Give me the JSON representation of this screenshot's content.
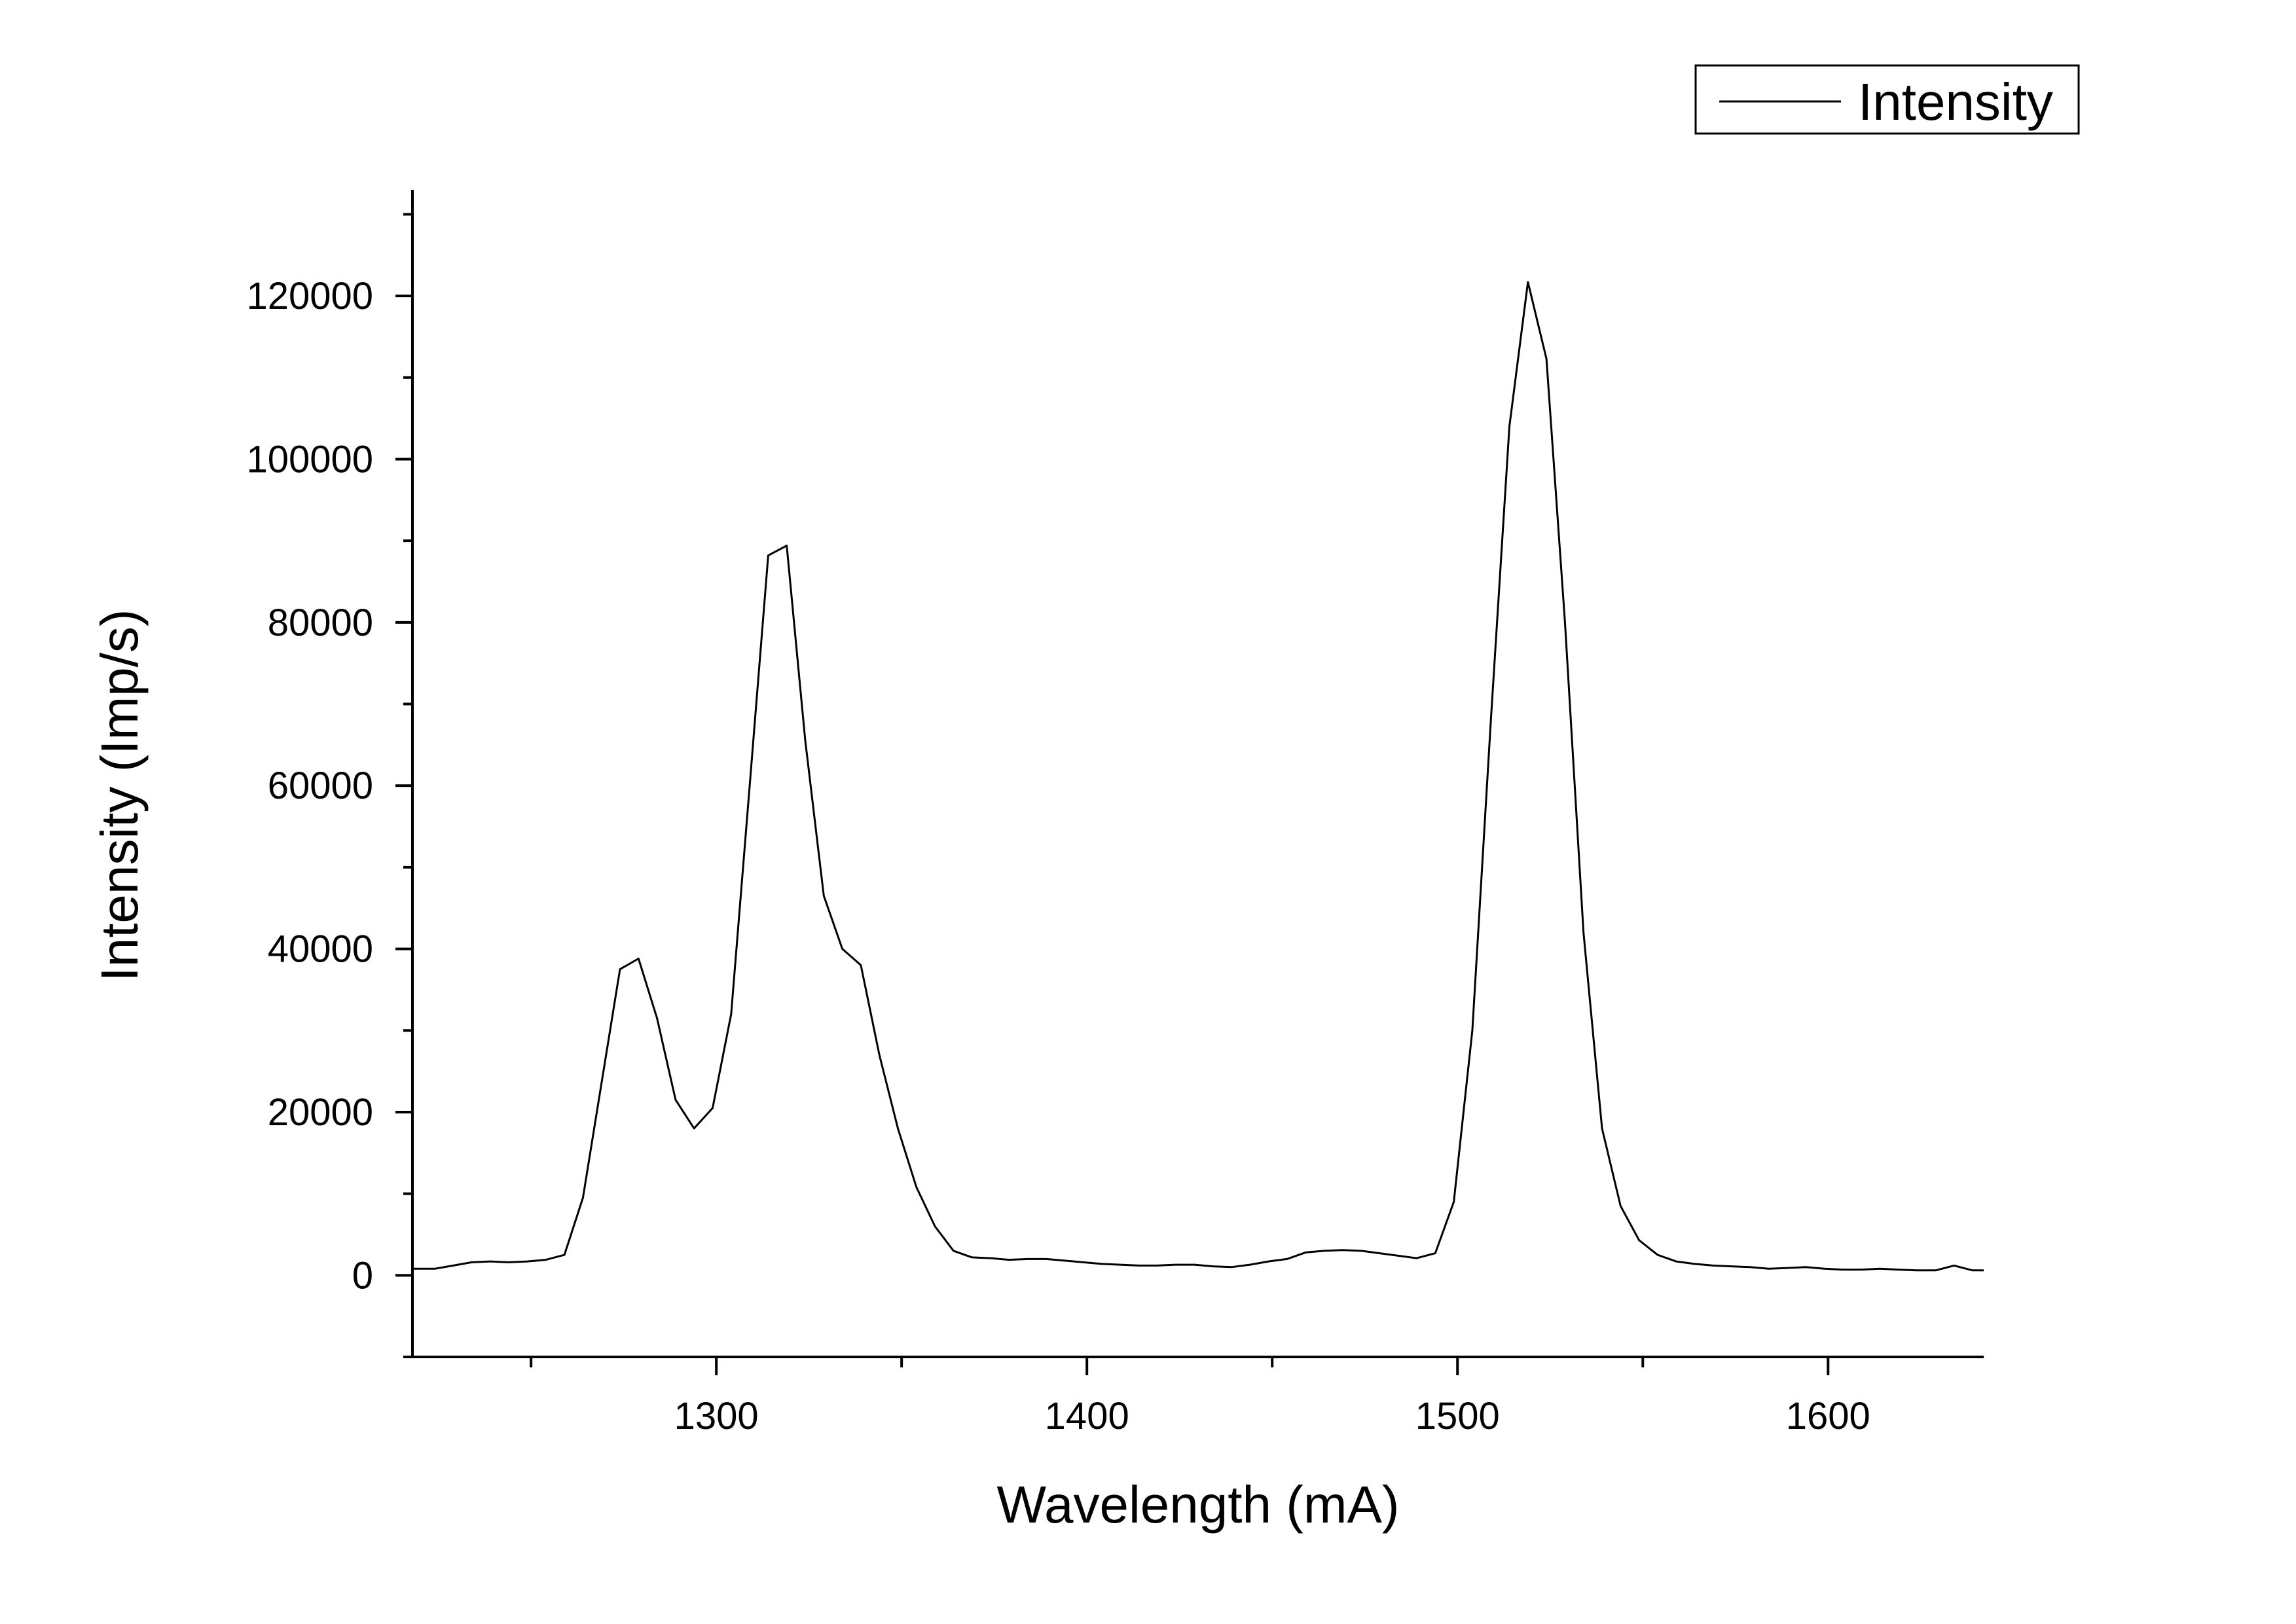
{
  "chart_data": {
    "type": "line",
    "title": "",
    "xlabel": "Wavelength (mA)",
    "ylabel": "Intensity (Imp/s)",
    "xlim": [
      1218,
      1642
    ],
    "ylim": [
      -10000,
      133000
    ],
    "x_ticks": [
      1300,
      1400,
      1500,
      1600
    ],
    "y_ticks": [
      0,
      20000,
      40000,
      60000,
      80000,
      100000,
      120000
    ],
    "x_tick_labels": [
      "1300",
      "1400",
      "1500",
      "1600"
    ],
    "y_tick_labels": [
      "0",
      "20000",
      "40000",
      "60000",
      "80000",
      "100000",
      "120000"
    ],
    "grid": false,
    "legend_position": "top-right",
    "line_color": "#000000",
    "series": [
      {
        "name": "Intensity",
        "x": [
          1218,
          1224,
          1229,
          1234,
          1239,
          1244,
          1249,
          1254,
          1259,
          1264,
          1269,
          1274,
          1279,
          1284,
          1289,
          1294,
          1299,
          1304,
          1309,
          1314,
          1319,
          1324,
          1329,
          1334,
          1339,
          1344,
          1349,
          1354,
          1359,
          1364,
          1369,
          1374,
          1379,
          1384,
          1389,
          1394,
          1399,
          1404,
          1409,
          1414,
          1419,
          1424,
          1429,
          1434,
          1439,
          1444,
          1449,
          1454,
          1459,
          1464,
          1469,
          1474,
          1479,
          1484,
          1489,
          1494,
          1499,
          1504,
          1509,
          1514,
          1519,
          1524,
          1529,
          1534,
          1539,
          1544,
          1549,
          1554,
          1559,
          1564,
          1569,
          1574,
          1579,
          1584,
          1589,
          1594,
          1599,
          1604,
          1609,
          1614,
          1619,
          1624,
          1629,
          1634,
          1639,
          1642
        ],
        "values": [
          800,
          800,
          1200,
          1600,
          1700,
          1600,
          1700,
          1900,
          2500,
          9500,
          23500,
          37500,
          38800,
          31500,
          21500,
          18000,
          20500,
          32000,
          60000,
          88200,
          89400,
          65500,
          46500,
          40000,
          38000,
          27000,
          18000,
          10800,
          6000,
          3000,
          2200,
          2100,
          1900,
          2000,
          2000,
          1800,
          1600,
          1400,
          1300,
          1200,
          1200,
          1300,
          1300,
          1100,
          1000,
          1300,
          1700,
          2000,
          2800,
          3000,
          3100,
          3000,
          2700,
          2400,
          2100,
          2700,
          9000,
          30000,
          68000,
          104000,
          121700,
          112300,
          80000,
          42000,
          18000,
          8500,
          4300,
          2500,
          1700,
          1400,
          1200,
          1100,
          1000,
          800,
          900,
          1000,
          800,
          700,
          700,
          800,
          700,
          600,
          600,
          1200,
          600,
          600
        ]
      }
    ]
  }
}
